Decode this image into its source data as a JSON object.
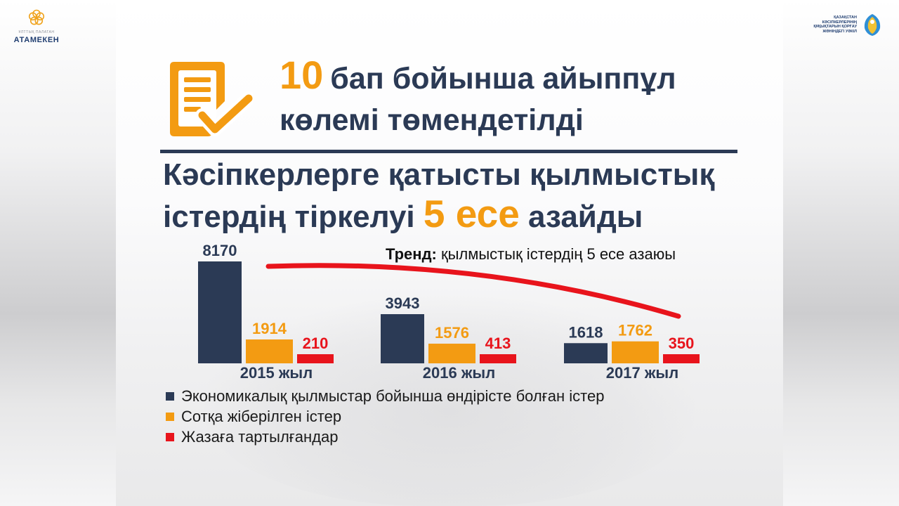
{
  "logos": {
    "left": {
      "small_text": "ҰЛТТЫҚ   ПАЛАТАН",
      "name": "АТАМЕКЕН"
    },
    "right": {
      "lines": [
        "ҚАЗАҚСТАН",
        "КӘСІПКЕРЛЕРІНІҢ",
        "ҚҰҚЫҚТАРЫН ҚОРҒАУ",
        "ЖӨНІНДЕГІ УӘКІЛ"
      ]
    }
  },
  "title": {
    "number": "10",
    "line1_rest": "бап бойынша айыппұл",
    "line2": "көлемі төмендетілді"
  },
  "headline": {
    "line1": "Кәсіпкерлерге қатысты қылмыстық",
    "line2_pre": "істердің тіркелуі ",
    "line2_highlight": "5 есе",
    "line2_post": " азайды"
  },
  "trend": {
    "label": "Тренд:",
    "text": " қылмыстық істердің 5 есе азаюы",
    "color": "#e8141c"
  },
  "chart_data": {
    "type": "bar",
    "categories": [
      "2015 жыл",
      "2016 жыл",
      "2017 жыл"
    ],
    "series": [
      {
        "name": "Экономикалық қылмыстар бойынша өндірісте болған істер",
        "color": "#2b3a55",
        "values": [
          8170,
          3943,
          1618
        ]
      },
      {
        "name": "Сотқа жіберілген істер",
        "color": "#f39b12",
        "values": [
          1914,
          1576,
          1762
        ]
      },
      {
        "name": "Жазаға тартылғандар",
        "color": "#e8141c",
        "values": [
          210,
          413,
          350
        ]
      }
    ],
    "title": "",
    "xlabel": "",
    "ylabel": "",
    "grid": false,
    "legend": "bottom-left"
  }
}
